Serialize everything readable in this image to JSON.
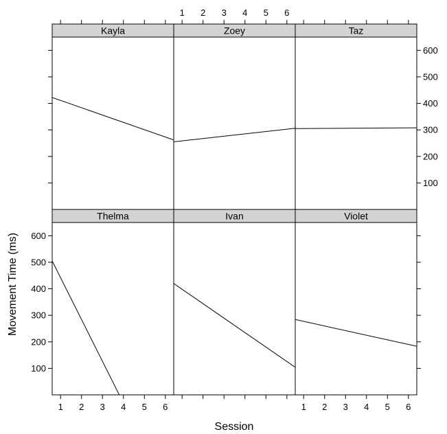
{
  "chart_data": {
    "type": "line",
    "layout": "trellis 3 columns x 2 rows",
    "xlabel": "Session",
    "ylabel": "Movement Time (ms)",
    "xlim": [
      0.6,
      6.4
    ],
    "ylim": [
      0,
      650
    ],
    "x_ticks": [
      1,
      2,
      3,
      4,
      5,
      6
    ],
    "y_ticks": [
      100,
      200,
      300,
      400,
      500,
      600
    ],
    "grid": false,
    "colors": {
      "strip": "#d3d3d3",
      "line": "#000000",
      "frame": "#000000"
    },
    "panels": [
      {
        "name": "Kayla",
        "x": [
          0.6,
          6.4
        ],
        "y": [
          422,
          262
        ]
      },
      {
        "name": "Zoey",
        "x": [
          0.6,
          6.4
        ],
        "y": [
          255,
          306
        ]
      },
      {
        "name": "Taz",
        "x": [
          0.6,
          6.4
        ],
        "y": [
          305,
          308
        ]
      },
      {
        "name": "Thelma",
        "x": [
          0.6,
          3.8
        ],
        "y": [
          505,
          0
        ]
      },
      {
        "name": "Ivan",
        "x": [
          0.6,
          6.4
        ],
        "y": [
          420,
          104
        ]
      },
      {
        "name": "Violet",
        "x": [
          0.6,
          6.4
        ],
        "y": [
          284,
          183
        ]
      }
    ]
  }
}
